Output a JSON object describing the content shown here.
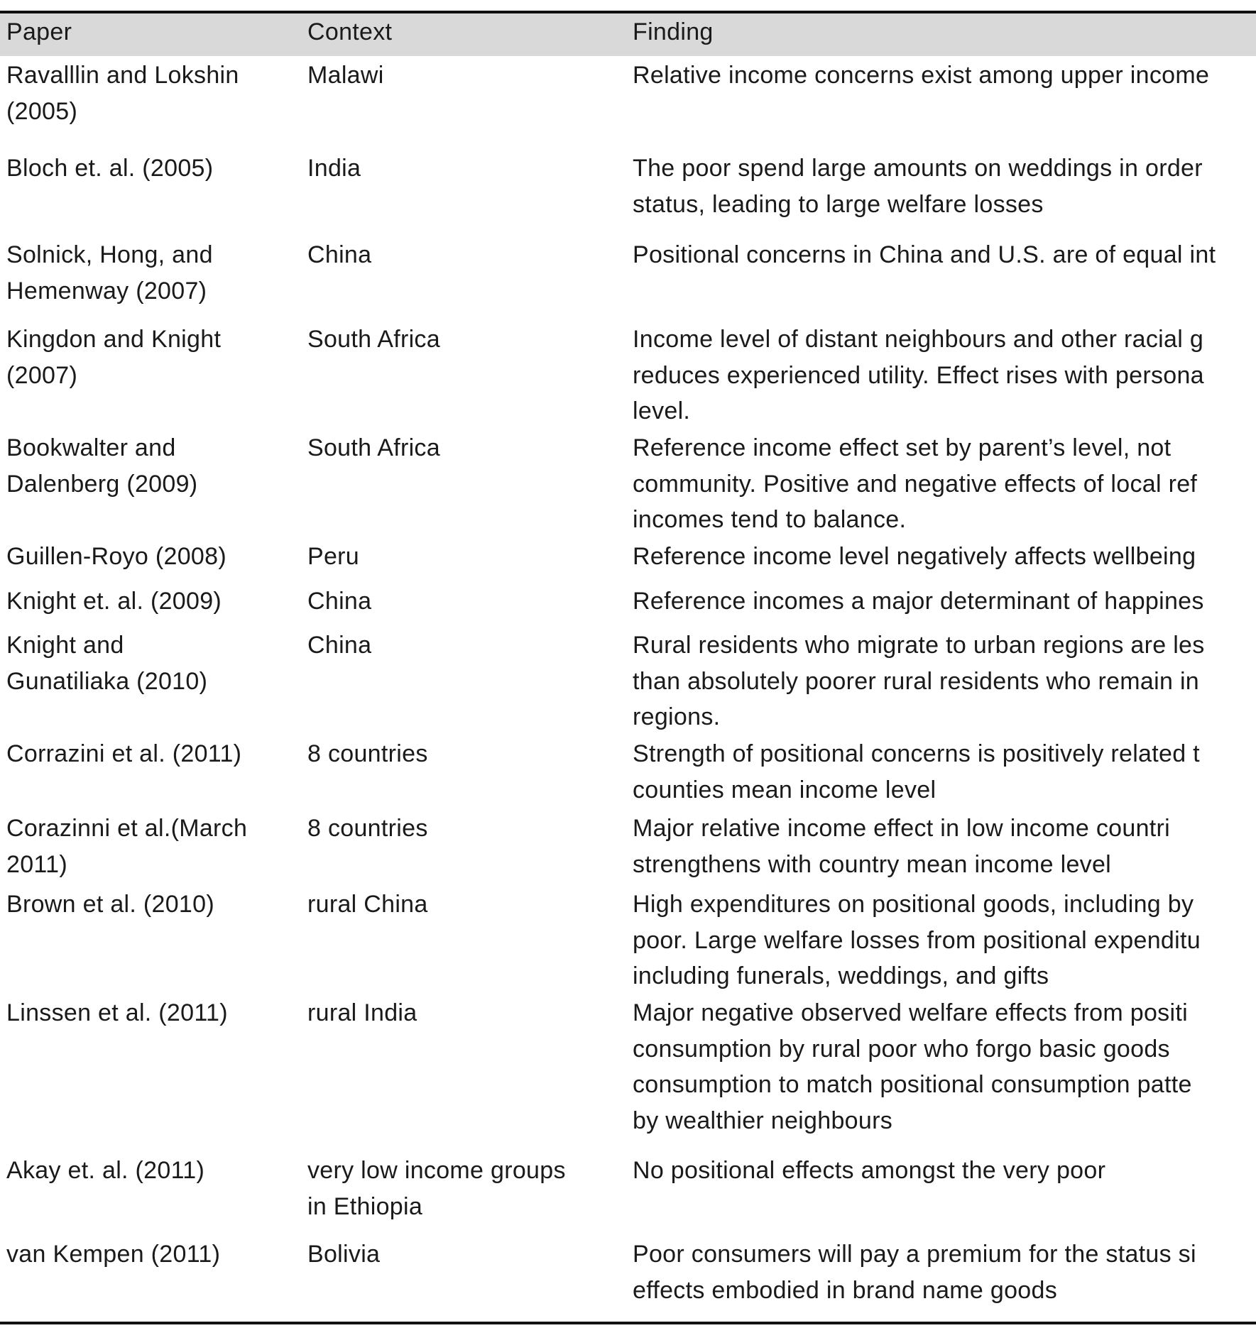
{
  "table": {
    "headers": [
      "Paper",
      "Context",
      "Finding"
    ],
    "rows": [
      {
        "paper": [
          "Ravalllin and Lokshin",
          "(2005)"
        ],
        "context": [
          "Malawi"
        ],
        "finding": [
          "Relative income concerns exist among upper income"
        ]
      },
      {
        "paper": [
          "Bloch et. al. (2005)"
        ],
        "context": [
          "India"
        ],
        "finding": [
          "The poor spend large amounts on weddings in order",
          "status, leading to large welfare losses"
        ]
      },
      {
        "paper": [
          "Solnick, Hong, and",
          "Hemenway (2007)"
        ],
        "context": [
          "China"
        ],
        "finding": [
          "Positional concerns in China and U.S. are of equal int"
        ]
      },
      {
        "paper": [
          "Kingdon and Knight",
          "(2007)"
        ],
        "context": [
          "South Africa"
        ],
        "finding": [
          "Income level of distant neighbours and other racial g",
          "reduces experienced utility. Effect rises with persona",
          "level."
        ]
      },
      {
        "paper": [
          "Bookwalter and",
          "Dalenberg (2009)"
        ],
        "context": [
          "South Africa"
        ],
        "finding": [
          "Reference income effect set by parent’s level, not",
          "community. Positive and negative effects of local ref",
          "incomes tend to balance."
        ]
      },
      {
        "paper": [
          "Guillen-Royo (2008)"
        ],
        "context": [
          "Peru"
        ],
        "finding": [
          "Reference income level negatively affects wellbeing"
        ]
      },
      {
        "paper": [
          "Knight et. al.  (2009)"
        ],
        "context": [
          "China"
        ],
        "finding": [
          "Reference incomes a major determinant of happines"
        ]
      },
      {
        "paper": [
          "Knight and",
          "Gunatiliaka (2010)"
        ],
        "context": [
          "China"
        ],
        "finding": [
          "Rural residents who migrate to urban regions are les",
          "than absolutely poorer rural residents who remain in",
          "regions."
        ]
      },
      {
        "paper": [
          "Corrazini et al. (2011)"
        ],
        "context": [
          "8 countries"
        ],
        "finding": [
          "Strength of positional concerns is positively related t",
          "counties mean income level"
        ]
      },
      {
        "paper": [
          "Corazinni et al.(March",
          "2011)"
        ],
        "context": [
          "8 countries"
        ],
        "finding": [
          "Major  relative income effect in low  income countri",
          "strengthens with country mean income level"
        ]
      },
      {
        "paper": [
          "Brown et al. (2010)"
        ],
        "context": [
          "rural China"
        ],
        "finding": [
          "High expenditures on positional goods, including by",
          "poor. Large welfare losses from positional expenditu",
          "including funerals, weddings, and gifts"
        ]
      },
      {
        "paper": [
          "Linssen et al. (2011)"
        ],
        "context": [
          "rural India"
        ],
        "finding": [
          "Major negative observed welfare effects from positi",
          "consumption by rural poor who forgo basic goods",
          "consumption to match positional consumption patte",
          "by wealthier neighbours"
        ]
      },
      {
        "paper": [
          "Akay et. al. (2011)"
        ],
        "context": [
          "very low income groups",
          "in Ethiopia"
        ],
        "finding": [
          "No positional effects amongst the very poor"
        ]
      },
      {
        "paper": [
          "van Kempen (2011)"
        ],
        "context": [
          "Bolivia"
        ],
        "finding": [
          "Poor consumers will pay a premium for the status si",
          "effects embodied in brand name goods"
        ]
      }
    ]
  }
}
